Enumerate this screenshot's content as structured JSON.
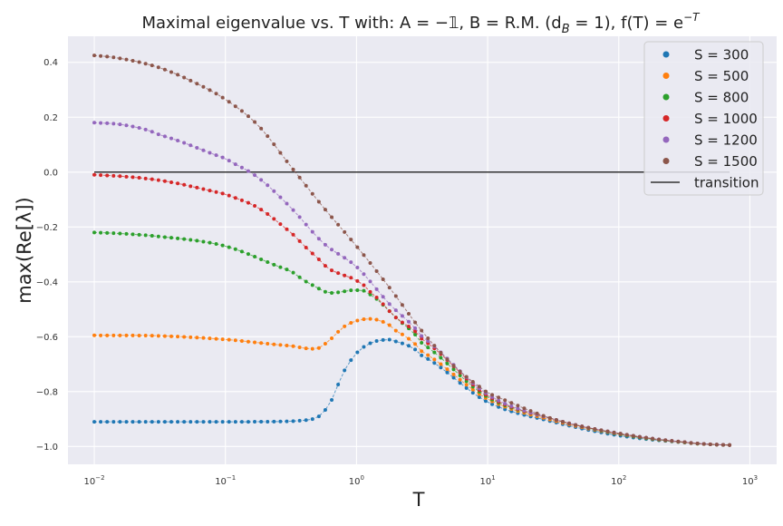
{
  "chart_data": {
    "type": "scatter",
    "title": "Maximal eigenvalue vs. T   with:  A = −1,   B = R.M. (d_B = 1),   f(T) = e^{−T}",
    "title_parts": {
      "main": "Maximal eigenvalue vs. T   with:  A = −𝟙,   B = R.M. (d",
      "sub": "B",
      "mid": " = 1),   f(T) = e",
      "sup": "−T"
    },
    "xlabel": "T",
    "ylabel": "max(Re[λ])",
    "xscale": "log",
    "xlim": [
      0.0063,
      1600
    ],
    "ylim": [
      -1.065,
      0.495
    ],
    "grid": true,
    "legend_position": "top-right",
    "x_ticks": [
      {
        "value": 0.01,
        "base": "10",
        "exp": "−2"
      },
      {
        "value": 0.1,
        "base": "10",
        "exp": "−1"
      },
      {
        "value": 1,
        "base": "10",
        "exp": "0"
      },
      {
        "value": 10,
        "base": "10",
        "exp": "1"
      },
      {
        "value": 100,
        "base": "10",
        "exp": "2"
      },
      {
        "value": 1000,
        "base": "10",
        "exp": "3"
      }
    ],
    "y_ticks": [
      {
        "value": 0.4,
        "label": "0.4"
      },
      {
        "value": 0.2,
        "label": "0.2"
      },
      {
        "value": 0.0,
        "label": "0.0"
      },
      {
        "value": -0.2,
        "label": "−0.2"
      },
      {
        "value": -0.4,
        "label": "−0.4"
      },
      {
        "value": -0.6,
        "label": "−0.6"
      },
      {
        "value": -0.8,
        "label": "−0.8"
      },
      {
        "value": -1.0,
        "label": "−1.0"
      }
    ],
    "x_range": [
      0.01,
      700
    ],
    "points_per_series": 100,
    "series": [
      {
        "name": "S = 300",
        "color": "#1f77b4",
        "logT": [
          -2,
          -1,
          -0.5,
          -0.3,
          -0.2,
          -0.1,
          0,
          0.1,
          0.2,
          0.3,
          0.5,
          1,
          1.5,
          2,
          2.5,
          2.85
        ],
        "y": [
          -0.91,
          -0.91,
          -0.908,
          -0.895,
          -0.84,
          -0.73,
          -0.66,
          -0.625,
          -0.612,
          -0.617,
          -0.67,
          -0.838,
          -0.91,
          -0.96,
          -0.985,
          -0.995
        ]
      },
      {
        "name": "S = 500",
        "color": "#ff7f0e",
        "logT": [
          -2,
          -1.5,
          -1,
          -0.5,
          -0.3,
          -0.2,
          -0.1,
          0,
          0.1,
          0.2,
          0.3,
          0.5,
          1,
          1.5,
          2,
          2.5,
          2.85
        ],
        "y": [
          -0.595,
          -0.597,
          -0.61,
          -0.633,
          -0.643,
          -0.61,
          -0.565,
          -0.542,
          -0.535,
          -0.545,
          -0.578,
          -0.655,
          -0.827,
          -0.905,
          -0.955,
          -0.985,
          -0.995
        ]
      },
      {
        "name": "S = 800",
        "color": "#2ca02c",
        "logT": [
          -2,
          -1.5,
          -1,
          -0.5,
          -0.3,
          -0.2,
          -0.1,
          0,
          0.1,
          0.3,
          0.5,
          1,
          1.5,
          2,
          2.5,
          2.85
        ],
        "y": [
          -0.22,
          -0.235,
          -0.27,
          -0.36,
          -0.42,
          -0.44,
          -0.435,
          -0.43,
          -0.445,
          -0.53,
          -0.625,
          -0.82,
          -0.9,
          -0.955,
          -0.985,
          -0.995
        ]
      },
      {
        "name": "S = 1000",
        "color": "#d62728",
        "logT": [
          -2,
          -1.5,
          -1,
          -0.75,
          -0.5,
          -0.3,
          -0.2,
          -0.1,
          0,
          0.1,
          0.3,
          0.5,
          1,
          1.5,
          2,
          2.5,
          2.85
        ],
        "y": [
          -0.01,
          -0.03,
          -0.08,
          -0.13,
          -0.22,
          -0.31,
          -0.355,
          -0.375,
          -0.395,
          -0.435,
          -0.53,
          -0.61,
          -0.815,
          -0.9,
          -0.953,
          -0.984,
          -0.995
        ]
      },
      {
        "name": "S = 1200",
        "color": "#9467bd",
        "logT": [
          -2,
          -1.75,
          -1.5,
          -1,
          -0.75,
          -0.5,
          -0.25,
          0,
          0.25,
          0.5,
          1,
          1.5,
          2,
          2.5,
          2.85
        ],
        "y": [
          0.18,
          0.17,
          0.135,
          0.05,
          -0.02,
          -0.13,
          -0.26,
          -0.345,
          -0.48,
          -0.6,
          -0.81,
          -0.9,
          -0.952,
          -0.984,
          -0.995
        ]
      },
      {
        "name": "S = 1500",
        "color": "#8c564b",
        "logT": [
          -2,
          -1.75,
          -1.5,
          -1.25,
          -1,
          -0.75,
          -0.5,
          -0.25,
          0,
          0.25,
          0.5,
          0.75,
          1,
          1.5,
          2,
          2.5,
          2.85
        ],
        "y": [
          0.425,
          0.41,
          0.38,
          0.33,
          0.265,
          0.17,
          0.02,
          -0.13,
          -0.27,
          -0.42,
          -0.58,
          -0.71,
          -0.805,
          -0.9,
          -0.952,
          -0.984,
          -0.995
        ]
      }
    ],
    "reference_line": {
      "name": "transition",
      "y": 0.0,
      "x_range": [
        0.01,
        700
      ],
      "color": "#333333"
    }
  }
}
